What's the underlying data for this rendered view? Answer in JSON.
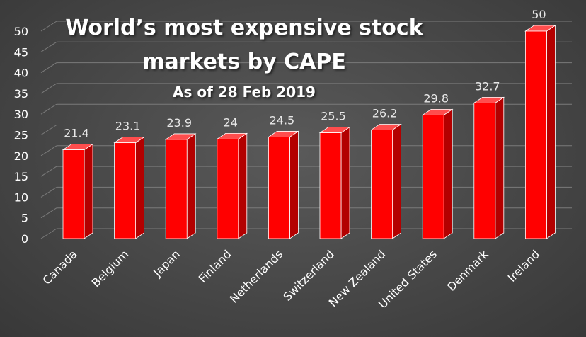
{
  "chart_data": {
    "type": "bar",
    "title_lines": [
      "World’s most expensive stock",
      "markets by CAPE",
      "As of 28 Feb 2019"
    ],
    "categories": [
      "Canada",
      "Belgium",
      "Japan",
      "Finland",
      "Netherlands",
      "Switzerland",
      "New Zealand",
      "United States",
      "Denmark",
      "Ireland"
    ],
    "values": [
      21.4,
      23.1,
      23.9,
      24,
      24.5,
      25.5,
      26.2,
      29.8,
      32.7,
      50
    ],
    "value_labels": [
      "21.4",
      "23.1",
      "23.9",
      "24",
      "24.5",
      "25.5",
      "26.2",
      "29.8",
      "32.7",
      "50"
    ],
    "y_ticks": [
      "0",
      "5",
      "10",
      "15",
      "20",
      "25",
      "30",
      "35",
      "40",
      "45",
      "50"
    ],
    "ylim": [
      0,
      50
    ],
    "grid": true,
    "legend": "none",
    "bar_color": "#ff0000",
    "bar_side_color": "#b30000",
    "bar_top_color": "#ff4d4d"
  }
}
